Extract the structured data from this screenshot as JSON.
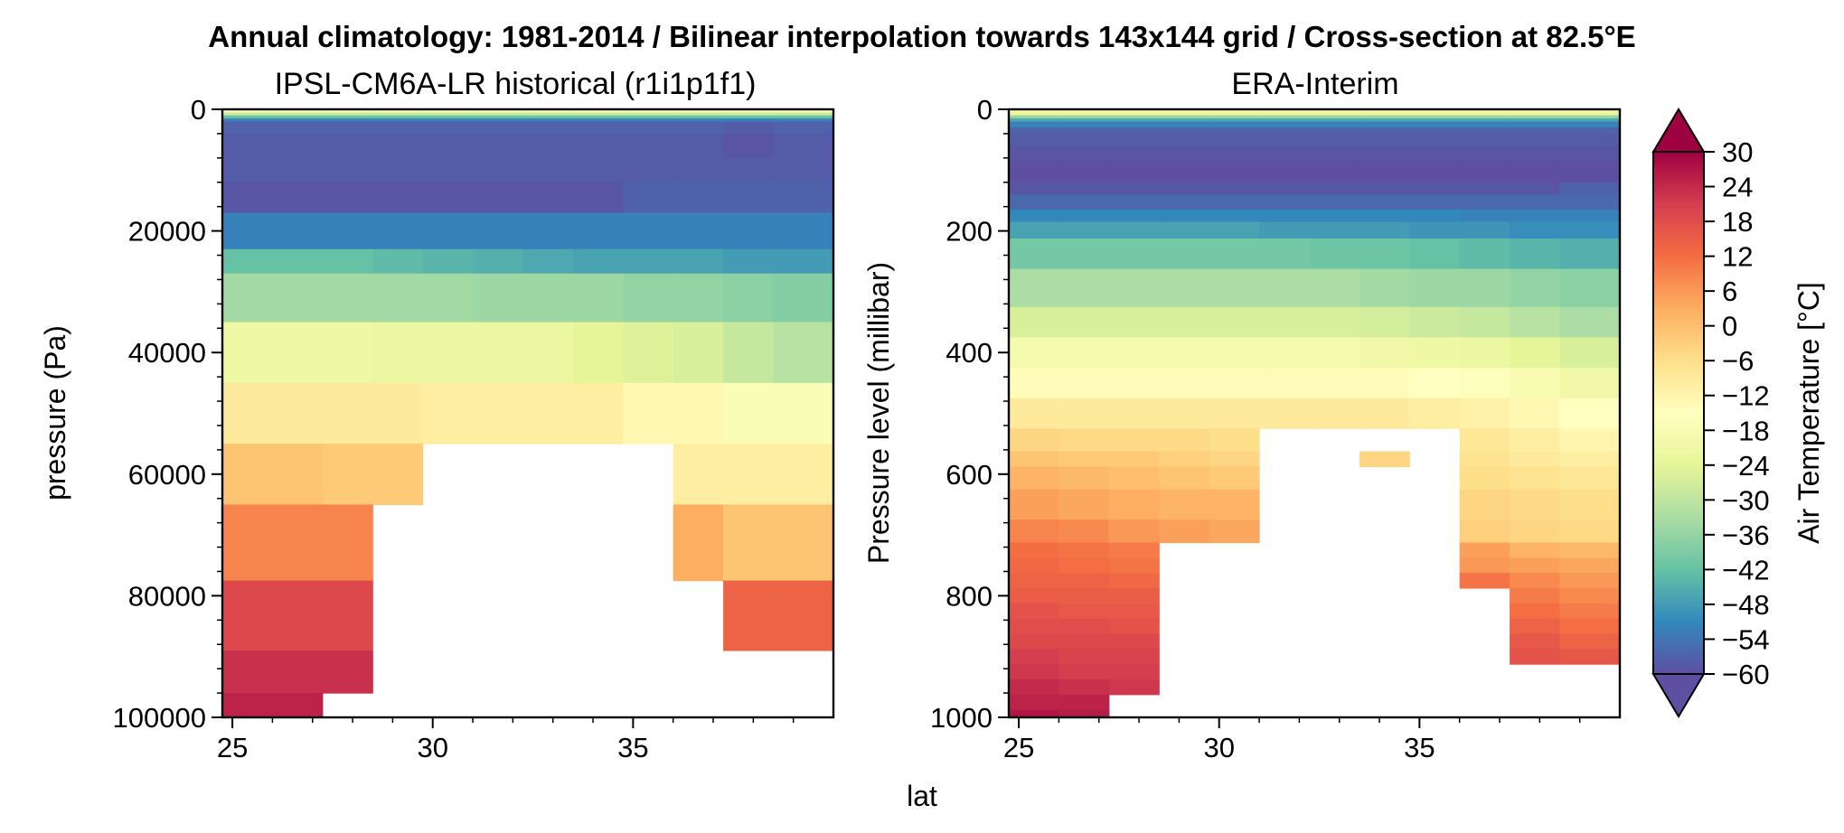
{
  "figure": {
    "suptitle": "Annual climatology: 1981-2014 / Bilinear interpolation towards 143x144 grid / Cross-section at 82.5°E",
    "shared_xlabel": "lat"
  },
  "panels": [
    {
      "title": "IPSL-CM6A-LR historical (r1i1p1f1)",
      "ylabel": "pressure (Pa)"
    },
    {
      "title": "ERA-Interim",
      "ylabel": "Pressure level (millibar)"
    }
  ],
  "colorbar": {
    "label": "Air Temperature [°C]",
    "ticks": [
      "30",
      "24",
      "18",
      "12",
      "6",
      "0",
      "−6",
      "−12",
      "−18",
      "−24",
      "−30",
      "−36",
      "−42",
      "−48",
      "−54",
      "−60"
    ],
    "range": [
      -60,
      30
    ],
    "extend": "both",
    "colormap": [
      "#5e4fa2",
      "#3288bd",
      "#66c2a5",
      "#abdda4",
      "#e6f598",
      "#ffffbf",
      "#fee08b",
      "#fdae61",
      "#f46d43",
      "#d53e4f",
      "#9e0142"
    ]
  },
  "chart_data": [
    {
      "type": "heatmap",
      "title": "IPSL-CM6A-LR historical (r1i1p1f1)",
      "xlabel": "lat",
      "ylabel": "pressure (Pa)",
      "xlim": [
        24.75,
        40.0
      ],
      "ylim": [
        100000,
        0
      ],
      "x_ticks": [
        "25",
        "30",
        "35"
      ],
      "y_ticks": [
        "0",
        "20000",
        "40000",
        "60000",
        "80000",
        "100000"
      ],
      "x_edges": [
        24.75,
        26.0,
        27.25,
        28.5,
        29.75,
        31.0,
        32.25,
        33.5,
        34.75,
        36.0,
        37.25,
        38.5,
        40.0
      ],
      "p_edges": [
        0,
        500,
        1000,
        1500,
        2000,
        4000,
        8000,
        12000,
        17000,
        23000,
        27000,
        35000,
        45000,
        55000,
        65000,
        77500,
        89000,
        96000,
        100000
      ],
      "values": [
        [
          -14,
          -14,
          -14,
          -14,
          -14,
          -14,
          -14,
          -14,
          -14,
          -14,
          -14,
          -14
        ],
        [
          -28,
          -28,
          -28,
          -28,
          -28,
          -28,
          -28,
          -28,
          -28,
          -28,
          -28,
          -28
        ],
        [
          -42,
          -42,
          -42,
          -42,
          -42,
          -42,
          -42,
          -42,
          -42,
          -42,
          -42,
          -42
        ],
        [
          -52,
          -52,
          -52,
          -52,
          -52,
          -52,
          -52,
          -52,
          -52,
          -52,
          -52,
          -52
        ],
        [
          -57,
          -57,
          -57,
          -57,
          -57,
          -57,
          -57,
          -57,
          -57,
          -57,
          -58,
          -57
        ],
        [
          -58,
          -58,
          -58,
          -58,
          -58,
          -58,
          -58,
          -58,
          -58,
          -58,
          -59,
          -58
        ],
        [
          -58,
          -58,
          -58,
          -58,
          -58,
          -58,
          -58,
          -58,
          -58,
          -58,
          -58,
          -58
        ],
        [
          -59,
          -59,
          -59,
          -59,
          -59,
          -59,
          -59,
          -59,
          -57,
          -57,
          -57,
          -57
        ],
        [
          -52,
          -52,
          -52,
          -52,
          -52,
          -52,
          -52,
          -52,
          -52,
          -52,
          -52,
          -52
        ],
        [
          -42,
          -42,
          -42,
          -43,
          -44,
          -45,
          -46,
          -47,
          -47,
          -47,
          -48,
          -48
        ],
        [
          -34,
          -34,
          -34,
          -34,
          -34,
          -35,
          -35,
          -35,
          -36,
          -36,
          -37,
          -38
        ],
        [
          -21,
          -21,
          -21,
          -22,
          -22,
          -22,
          -22,
          -24,
          -25,
          -26,
          -29,
          -31
        ],
        [
          -9,
          -9,
          -9,
          -9,
          -10,
          -10,
          -10,
          -10,
          -13,
          -13,
          -17,
          -17
        ],
        [
          -1,
          -1,
          -2,
          -2,
          null,
          null,
          null,
          null,
          null,
          -10,
          -10,
          -10
        ],
        [
          9,
          9,
          9,
          null,
          null,
          null,
          null,
          null,
          null,
          3,
          -1,
          -1
        ],
        [
          19,
          19,
          19,
          null,
          null,
          null,
          null,
          null,
          null,
          null,
          14,
          14
        ],
        [
          23,
          23,
          23,
          null,
          null,
          null,
          null,
          null,
          null,
          null,
          null,
          null
        ],
        [
          25,
          25,
          null,
          null,
          null,
          null,
          null,
          null,
          null,
          null,
          null,
          null
        ]
      ]
    },
    {
      "type": "heatmap",
      "title": "ERA-Interim",
      "xlabel": "lat",
      "ylabel": "Pressure level (millibar)",
      "xlim": [
        24.75,
        40.0
      ],
      "ylim": [
        1000,
        0
      ],
      "x_ticks": [
        "25",
        "30",
        "35"
      ],
      "y_ticks": [
        "0",
        "200",
        "400",
        "600",
        "800",
        "1000"
      ],
      "x_edges": [
        24.75,
        26.0,
        27.25,
        28.5,
        29.75,
        31.0,
        32.25,
        33.5,
        34.75,
        36.0,
        37.25,
        38.5,
        40.0
      ],
      "p_edges": [
        0,
        5,
        10,
        15,
        20,
        30,
        40,
        60,
        85,
        120,
        140,
        165,
        185,
        212.5,
        262.5,
        325,
        375,
        425,
        475,
        525,
        562.5,
        587.5,
        625,
        675,
        712.5,
        737.5,
        762.5,
        787.5,
        812.5,
        837.5,
        862.5,
        887.5,
        912.5,
        937.5,
        962.5,
        987.5,
        1000
      ],
      "values": [
        [
          -12,
          -12,
          -12,
          -12,
          -12,
          -12,
          -12,
          -12,
          -12,
          -12,
          -12,
          -12
        ],
        [
          -24,
          -24,
          -24,
          -24,
          -24,
          -24,
          -24,
          -24,
          -24,
          -24,
          -24,
          -24
        ],
        [
          -36,
          -36,
          -36,
          -36,
          -36,
          -36,
          -36,
          -36,
          -36,
          -36,
          -36,
          -36
        ],
        [
          -46,
          -46,
          -46,
          -46,
          -46,
          -46,
          -46,
          -46,
          -46,
          -46,
          -46,
          -46
        ],
        [
          -52,
          -52,
          -52,
          -52,
          -52,
          -52,
          -52,
          -52,
          -52,
          -52,
          -52,
          -52
        ],
        [
          -57,
          -57,
          -57,
          -57,
          -57,
          -57,
          -57,
          -57,
          -57,
          -57,
          -57,
          -57
        ],
        [
          -58,
          -58,
          -58,
          -58,
          -58,
          -58,
          -58,
          -58,
          -58,
          -58,
          -58,
          -58
        ],
        [
          -59,
          -59,
          -59,
          -59,
          -59,
          -59,
          -59,
          -59,
          -59,
          -59,
          -59,
          -59
        ],
        [
          -60,
          -60,
          -60,
          -60,
          -60,
          -60,
          -60,
          -60,
          -60,
          -60,
          -60,
          -60
        ],
        [
          -59,
          -59,
          -59,
          -59,
          -59,
          -59,
          -59,
          -59,
          -59,
          -59,
          -59,
          -57
        ],
        [
          -56,
          -56,
          -56,
          -56,
          -56,
          -56,
          -56,
          -56,
          -56,
          -56,
          -56,
          -56
        ],
        [
          -51,
          -51,
          -51,
          -51,
          -51,
          -51,
          -51,
          -51,
          -51,
          -52,
          -52,
          -52
        ],
        [
          -47,
          -47,
          -47,
          -47,
          -47,
          -48,
          -48,
          -48,
          -49,
          -49,
          -50,
          -50
        ],
        [
          -40,
          -40,
          -40,
          -40,
          -40,
          -40,
          -41,
          -41,
          -42,
          -43,
          -44,
          -45
        ],
        [
          -33,
          -33,
          -33,
          -33,
          -33,
          -33,
          -33,
          -34,
          -35,
          -35,
          -36,
          -37
        ],
        [
          -26,
          -26,
          -26,
          -26,
          -26,
          -26,
          -26,
          -27,
          -28,
          -29,
          -31,
          -33
        ],
        [
          -19,
          -19,
          -19,
          -19,
          -19,
          -19,
          -19,
          -20,
          -21,
          -22,
          -24,
          -26
        ],
        [
          -14,
          -14,
          -14,
          -14,
          -14,
          -14,
          -14,
          -14,
          -15,
          -16,
          -18,
          -20
        ],
        [
          -9,
          -9,
          -9,
          -9,
          -9,
          -9,
          -9,
          -9,
          -10,
          -11,
          -13,
          -15
        ],
        [
          -4,
          -5,
          -5,
          -5,
          -6,
          null,
          null,
          null,
          null,
          -8,
          -10,
          -12
        ],
        [
          -1,
          -2,
          -2,
          -3,
          -4,
          null,
          null,
          -4,
          null,
          -7,
          -9,
          -10
        ],
        [
          2,
          1,
          0,
          -1,
          -2,
          null,
          null,
          null,
          null,
          -6,
          -7,
          -8
        ],
        [
          5,
          4,
          3,
          2,
          2,
          null,
          null,
          null,
          null,
          -4,
          -5,
          -6
        ],
        [
          9,
          8,
          6,
          5,
          4,
          null,
          null,
          null,
          null,
          -3,
          -4,
          -5
        ],
        [
          12,
          11,
          10,
          null,
          null,
          null,
          null,
          null,
          null,
          5,
          2,
          1
        ],
        [
          13,
          12,
          11,
          null,
          null,
          null,
          null,
          null,
          null,
          6,
          5,
          4
        ],
        [
          14,
          14,
          13,
          null,
          null,
          null,
          null,
          null,
          null,
          11,
          8,
          6
        ],
        [
          15,
          15,
          15,
          null,
          null,
          null,
          null,
          null,
          null,
          null,
          10,
          8
        ],
        [
          17,
          16,
          16,
          null,
          null,
          null,
          null,
          null,
          null,
          null,
          12,
          10
        ],
        [
          18,
          18,
          17,
          null,
          null,
          null,
          null,
          null,
          null,
          null,
          14,
          12
        ],
        [
          19,
          19,
          19,
          null,
          null,
          null,
          null,
          null,
          null,
          null,
          16,
          14
        ],
        [
          21,
          20,
          20,
          null,
          null,
          null,
          null,
          null,
          null,
          null,
          17,
          16
        ],
        [
          22,
          21,
          21,
          null,
          null,
          null,
          null,
          null,
          null,
          null,
          null,
          null
        ],
        [
          24,
          23,
          22,
          null,
          null,
          null,
          null,
          null,
          null,
          null,
          null,
          null
        ],
        [
          25,
          25,
          null,
          null,
          null,
          null,
          null,
          null,
          null,
          null,
          null,
          null
        ],
        [
          27,
          26,
          null,
          null,
          null,
          null,
          null,
          null,
          null,
          null,
          null,
          null
        ]
      ]
    }
  ]
}
